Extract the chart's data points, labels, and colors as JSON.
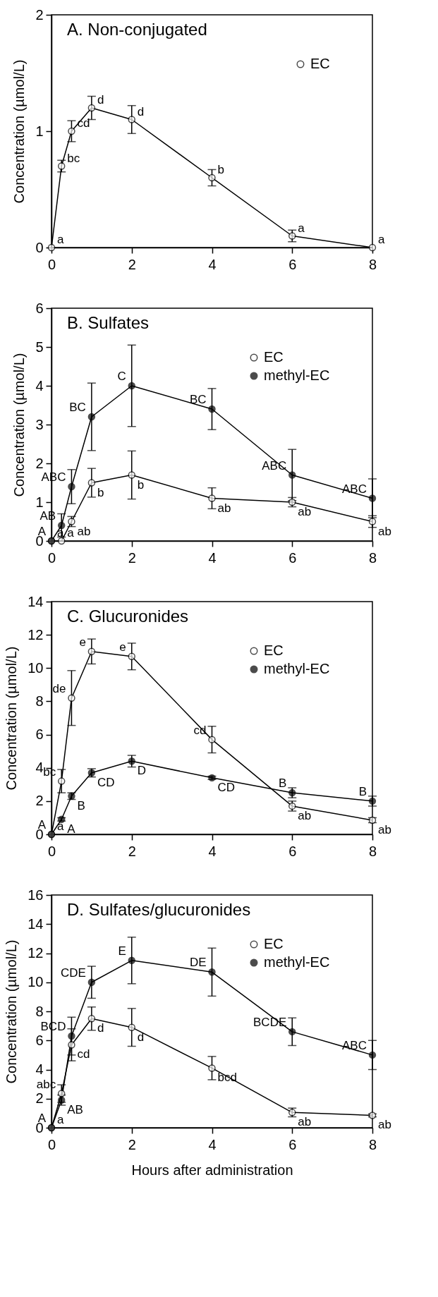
{
  "chart_data": [
    {
      "type": "line",
      "title": "A. Non-conjugated",
      "ylabel": "Concentration (µmol/L)",
      "x": [
        0,
        0.25,
        0.5,
        1,
        2,
        4,
        6,
        8
      ],
      "xlim": [
        0,
        8
      ],
      "xticks": [
        0,
        2,
        4,
        6,
        8
      ],
      "ylim": [
        0,
        2
      ],
      "yticks": [
        0,
        1,
        2
      ],
      "grid": false,
      "legend": "top right",
      "marker": "circle",
      "line_style": "solid",
      "series": [
        {
          "name": "EC",
          "color": "#000000",
          "values": [
            0,
            0.7,
            1.0,
            1.2,
            1.1,
            0.6,
            0.1,
            0
          ],
          "errors": [
            null,
            0.05,
            0.09,
            0.1,
            0.12,
            0.07,
            0.05,
            null
          ]
        }
      ],
      "annotations": [
        {
          "text": "a",
          "x": 0,
          "y": 0
        },
        {
          "text": "bc",
          "x": 0.25,
          "y": 0.7
        },
        {
          "text": "cd",
          "x": 0.5,
          "y": 1.0
        },
        {
          "text": "d",
          "x": 1,
          "y": 1.2
        },
        {
          "text": "d",
          "x": 2,
          "y": 1.1
        },
        {
          "text": "b",
          "x": 4,
          "y": 0.6
        },
        {
          "text": "a",
          "x": 6,
          "y": 0.1
        },
        {
          "text": "a",
          "x": 8,
          "y": 0
        }
      ]
    },
    {
      "type": "line",
      "title": "B. Sulfates",
      "ylabel": "Concentration (µmol/L)",
      "x": [
        0,
        0.25,
        0.5,
        1,
        2,
        4,
        6,
        8
      ],
      "xlim": [
        0,
        8
      ],
      "xticks": [
        0,
        2,
        4,
        6,
        8
      ],
      "ylim": [
        0,
        6
      ],
      "yticks": [
        0,
        1,
        2,
        3,
        4,
        5,
        6
      ],
      "grid": false,
      "legend": "top right",
      "marker": "circle",
      "line_style": "solid",
      "series": [
        {
          "name": "EC",
          "color": "#000000",
          "values": [
            0,
            0,
            0.5,
            1.5,
            1.7,
            1.1,
            1.0,
            0.5
          ],
          "errors": [
            null,
            null,
            0.13,
            0.37,
            0.62,
            0.27,
            0.12,
            0.15
          ]
        },
        {
          "name": "methyl-EC",
          "color": "#000000",
          "values": [
            0,
            0.4,
            1.4,
            3.2,
            4.0,
            3.4,
            1.7,
            1.1
          ],
          "errors": [
            null,
            0.3,
            0.44,
            0.87,
            1.05,
            0.53,
            0.66,
            0.5
          ]
        }
      ],
      "annotations": [
        {
          "text": "a",
          "x": 0,
          "y": 0
        },
        {
          "text": "a",
          "x": 0.25,
          "y": 0
        },
        {
          "text": "ab",
          "x": 0.5,
          "y": 0.5
        },
        {
          "text": "b",
          "x": 1,
          "y": 1.5
        },
        {
          "text": "b",
          "x": 2,
          "y": 1.7
        },
        {
          "text": "ab",
          "x": 4,
          "y": 1.1
        },
        {
          "text": "ab",
          "x": 6,
          "y": 1.0
        },
        {
          "text": "ab",
          "x": 8,
          "y": 0.5
        },
        {
          "text": "A",
          "x": 0,
          "y": 0
        },
        {
          "text": "AB",
          "x": 0.25,
          "y": 0.4
        },
        {
          "text": "ABC",
          "x": 0.5,
          "y": 1.4
        },
        {
          "text": "BC",
          "x": 1,
          "y": 3.2
        },
        {
          "text": "C",
          "x": 2,
          "y": 4.0
        },
        {
          "text": "BC",
          "x": 4,
          "y": 3.4
        },
        {
          "text": "ABC",
          "x": 6,
          "y": 1.7
        },
        {
          "text": "ABC",
          "x": 8,
          "y": 1.1
        }
      ]
    },
    {
      "type": "line",
      "title": "C. Glucuronides",
      "ylabel": "Concentration (µmol/L)",
      "x": [
        0,
        0.25,
        0.5,
        1,
        2,
        4,
        6,
        8
      ],
      "xlim": [
        0,
        8
      ],
      "xticks": [
        0,
        2,
        4,
        6,
        8
      ],
      "ylim": [
        0,
        14
      ],
      "yticks": [
        0,
        2,
        4,
        6,
        8,
        10,
        12,
        14
      ],
      "grid": false,
      "legend": "top right",
      "marker": "circle",
      "line_style": "solid",
      "series": [
        {
          "name": "EC",
          "color": "#000000",
          "values": [
            0,
            3.2,
            8.2,
            11.0,
            10.7,
            5.7,
            1.7,
            0.85
          ],
          "errors": [
            null,
            0.7,
            1.65,
            0.75,
            0.8,
            0.8,
            0.3,
            0.15
          ]
        },
        {
          "name": "methyl-EC",
          "color": "#000000",
          "values": [
            0,
            0.9,
            2.3,
            3.7,
            4.4,
            3.4,
            2.5,
            2.0
          ],
          "errors": [
            null,
            0.1,
            0.2,
            0.25,
            0.35,
            0.1,
            0.3,
            0.3
          ]
        }
      ],
      "annotations": [
        {
          "text": "a",
          "x": 0,
          "y": 0
        },
        {
          "text": "bc",
          "x": 0.25,
          "y": 3.2
        },
        {
          "text": "de",
          "x": 0.5,
          "y": 8.2
        },
        {
          "text": "e",
          "x": 1,
          "y": 11.0
        },
        {
          "text": "e",
          "x": 2,
          "y": 10.7
        },
        {
          "text": "cd",
          "x": 4,
          "y": 5.7
        },
        {
          "text": "ab",
          "x": 6,
          "y": 1.7
        },
        {
          "text": "ab",
          "x": 8,
          "y": 0.85
        },
        {
          "text": "A",
          "x": 0,
          "y": 0
        },
        {
          "text": "A",
          "x": 0.25,
          "y": 0.9
        },
        {
          "text": "B",
          "x": 0.5,
          "y": 2.3
        },
        {
          "text": "CD",
          "x": 1,
          "y": 3.7
        },
        {
          "text": "D",
          "x": 2,
          "y": 4.4
        },
        {
          "text": "CD",
          "x": 4,
          "y": 3.4
        },
        {
          "text": "B",
          "x": 6,
          "y": 2.5
        },
        {
          "text": "B",
          "x": 8,
          "y": 2.0
        }
      ]
    },
    {
      "type": "line",
      "title": "D. Sulfates/glucuronides",
      "xlabel": "Hours after administration",
      "ylabel": "Concentration (µmol/L)",
      "x": [
        0,
        0.25,
        0.5,
        1,
        2,
        4,
        6,
        8
      ],
      "xlim": [
        0,
        8
      ],
      "xticks": [
        0,
        2,
        4,
        6,
        8
      ],
      "ylim": [
        0,
        16
      ],
      "yticks": [
        0,
        2,
        4,
        6,
        8,
        10,
        12,
        14,
        16
      ],
      "grid": false,
      "legend": "top right",
      "marker": "circle",
      "line_style": "solid",
      "series": [
        {
          "name": "EC",
          "color": "#000000",
          "values": [
            0,
            2.35,
            5.7,
            7.5,
            6.9,
            4.1,
            1.05,
            0.85
          ],
          "errors": [
            null,
            0.6,
            1.1,
            0.8,
            1.3,
            0.8,
            0.3,
            0.1
          ]
        },
        {
          "name": "methyl-EC",
          "color": "#000000",
          "values": [
            0,
            1.9,
            6.3,
            10.0,
            11.5,
            10.7,
            6.6,
            5.0
          ],
          "errors": [
            null,
            0.35,
            1.3,
            1.1,
            1.6,
            1.65,
            0.95,
            1.0
          ]
        }
      ],
      "annotations": [
        {
          "text": "a",
          "x": 0,
          "y": 0
        },
        {
          "text": "abc",
          "x": 0.25,
          "y": 2.35
        },
        {
          "text": "cd",
          "x": 0.5,
          "y": 5.7
        },
        {
          "text": "d",
          "x": 1,
          "y": 7.5
        },
        {
          "text": "d",
          "x": 2,
          "y": 6.9
        },
        {
          "text": "bcd",
          "x": 4,
          "y": 4.1
        },
        {
          "text": "ab",
          "x": 6,
          "y": 1.05
        },
        {
          "text": "ab",
          "x": 8,
          "y": 0.85
        },
        {
          "text": "A",
          "x": 0,
          "y": 0
        },
        {
          "text": "AB",
          "x": 0.25,
          "y": 1.9
        },
        {
          "text": "BCD",
          "x": 0.5,
          "y": 6.3
        },
        {
          "text": "CDE",
          "x": 1,
          "y": 10.0
        },
        {
          "text": "E",
          "x": 2,
          "y": 11.5
        },
        {
          "text": "DE",
          "x": 4,
          "y": 10.7
        },
        {
          "text": "BCDE",
          "x": 6,
          "y": 6.6
        },
        {
          "text": "ABC",
          "x": 8,
          "y": 5.0
        }
      ]
    }
  ]
}
